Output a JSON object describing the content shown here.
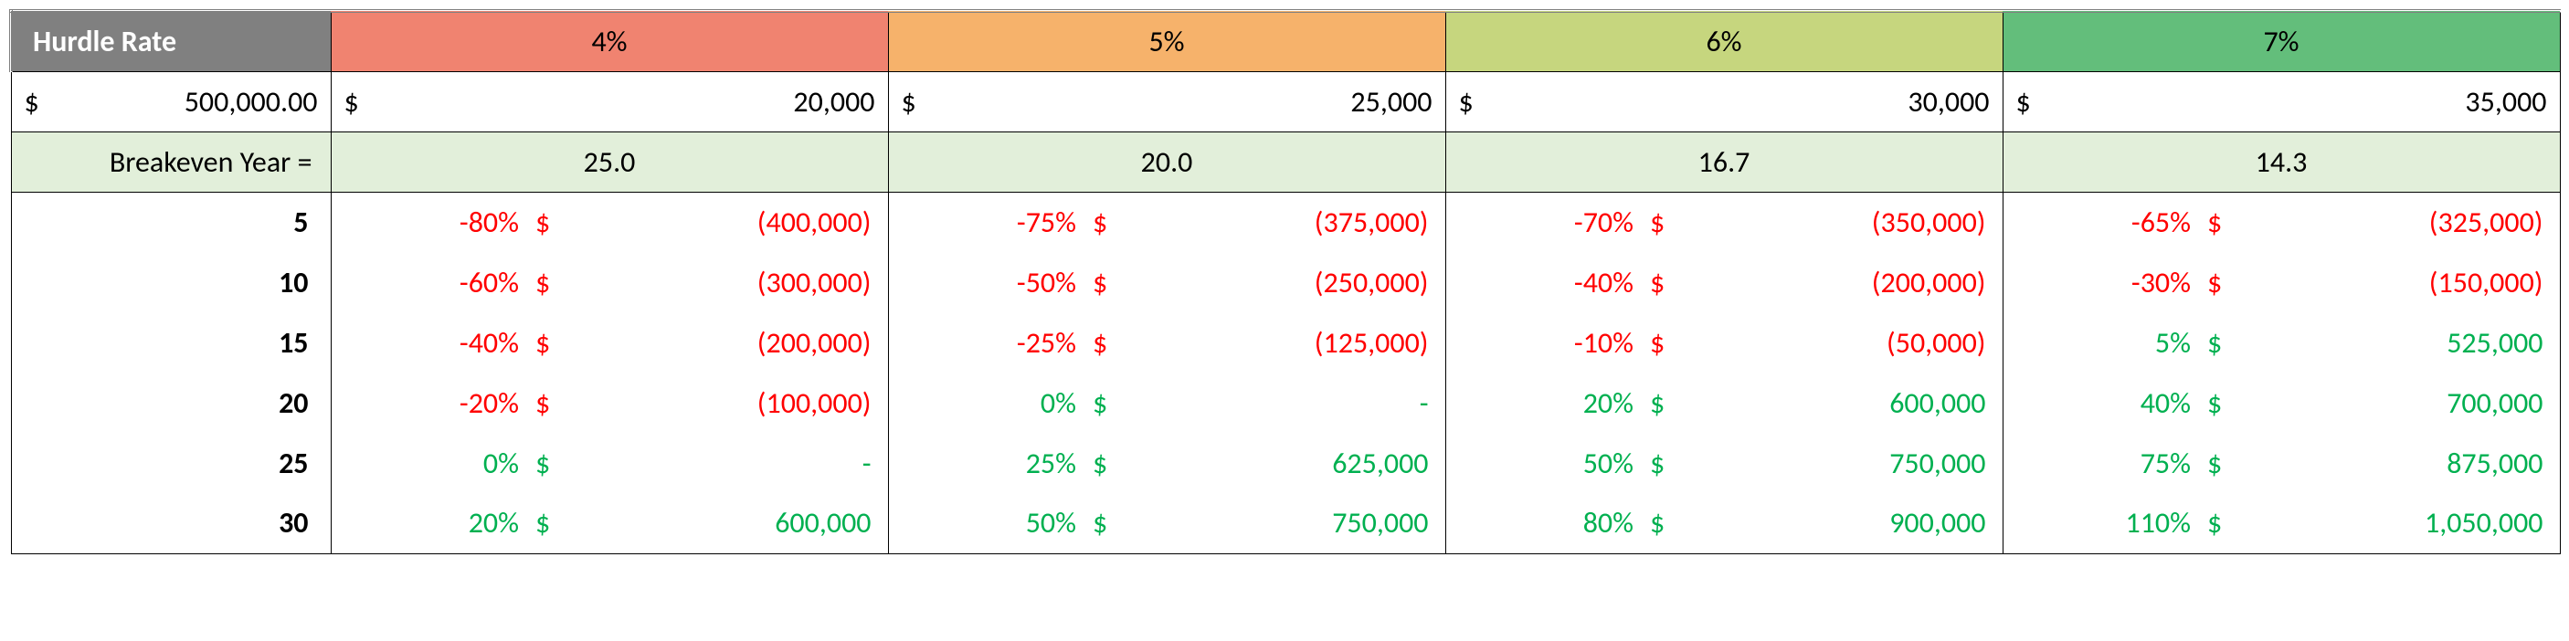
{
  "header": {
    "label": "Hurdle Rate",
    "rates": [
      {
        "label": "4%",
        "bg": "#f08370"
      },
      {
        "label": "5%",
        "bg": "#f6b26b"
      },
      {
        "label": "6%",
        "bg": "#c6d67e"
      },
      {
        "label": "7%",
        "bg": "#63be7b"
      }
    ]
  },
  "investment": {
    "sym": "$",
    "amount": "500,000.00",
    "per_rate": [
      {
        "sym": "$",
        "amount": "20,000"
      },
      {
        "sym": "$",
        "amount": "25,000"
      },
      {
        "sym": "$",
        "amount": "30,000"
      },
      {
        "sym": "$",
        "amount": "35,000"
      }
    ]
  },
  "breakeven": {
    "label": "Breakeven Year =",
    "values": [
      "25.0",
      "20.0",
      "16.7",
      "14.3"
    ],
    "bg": "#e2efda"
  },
  "rows": [
    {
      "year": "5",
      "cells": [
        {
          "pct": "-80%",
          "sym": "$",
          "amt": "(400,000)",
          "cls": "neg"
        },
        {
          "pct": "-75%",
          "sym": "$",
          "amt": "(375,000)",
          "cls": "neg"
        },
        {
          "pct": "-70%",
          "sym": "$",
          "amt": "(350,000)",
          "cls": "neg"
        },
        {
          "pct": "-65%",
          "sym": "$",
          "amt": "(325,000)",
          "cls": "neg"
        }
      ]
    },
    {
      "year": "10",
      "cells": [
        {
          "pct": "-60%",
          "sym": "$",
          "amt": "(300,000)",
          "cls": "neg"
        },
        {
          "pct": "-50%",
          "sym": "$",
          "amt": "(250,000)",
          "cls": "neg"
        },
        {
          "pct": "-40%",
          "sym": "$",
          "amt": "(200,000)",
          "cls": "neg"
        },
        {
          "pct": "-30%",
          "sym": "$",
          "amt": "(150,000)",
          "cls": "neg"
        }
      ]
    },
    {
      "year": "15",
      "cells": [
        {
          "pct": "-40%",
          "sym": "$",
          "amt": "(200,000)",
          "cls": "neg"
        },
        {
          "pct": "-25%",
          "sym": "$",
          "amt": "(125,000)",
          "cls": "neg"
        },
        {
          "pct": "-10%",
          "sym": "$",
          "amt": "(50,000)",
          "cls": "neg"
        },
        {
          "pct": "5%",
          "sym": "$",
          "amt": "525,000",
          "cls": "pos"
        }
      ]
    },
    {
      "year": "20",
      "cells": [
        {
          "pct": "-20%",
          "sym": "$",
          "amt": "(100,000)",
          "cls": "neg"
        },
        {
          "pct": "0%",
          "sym": "$",
          "amt": "-",
          "cls": "pos"
        },
        {
          "pct": "20%",
          "sym": "$",
          "amt": "600,000",
          "cls": "pos"
        },
        {
          "pct": "40%",
          "sym": "$",
          "amt": "700,000",
          "cls": "pos"
        }
      ]
    },
    {
      "year": "25",
      "cells": [
        {
          "pct": "0%",
          "sym": "$",
          "amt": "-",
          "cls": "pos"
        },
        {
          "pct": "25%",
          "sym": "$",
          "amt": "625,000",
          "cls": "pos"
        },
        {
          "pct": "50%",
          "sym": "$",
          "amt": "750,000",
          "cls": "pos"
        },
        {
          "pct": "75%",
          "sym": "$",
          "amt": "875,000",
          "cls": "pos"
        }
      ]
    },
    {
      "year": "30",
      "cells": [
        {
          "pct": "20%",
          "sym": "$",
          "amt": "600,000",
          "cls": "pos"
        },
        {
          "pct": "50%",
          "sym": "$",
          "amt": "750,000",
          "cls": "pos"
        },
        {
          "pct": "80%",
          "sym": "$",
          "amt": "900,000",
          "cls": "pos"
        },
        {
          "pct": "110%",
          "sym": "$",
          "amt": "1,050,000",
          "cls": "pos"
        }
      ]
    }
  ]
}
